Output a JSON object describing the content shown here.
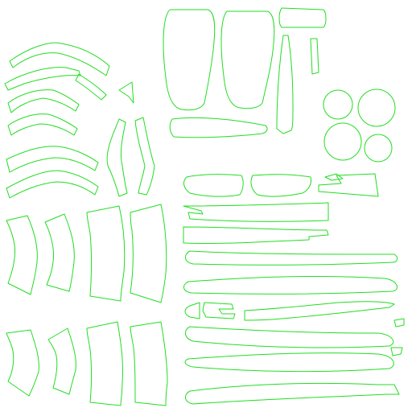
{
  "canvas": {
    "background": "#ffffff",
    "stroke_color": "#22dd22"
  }
}
